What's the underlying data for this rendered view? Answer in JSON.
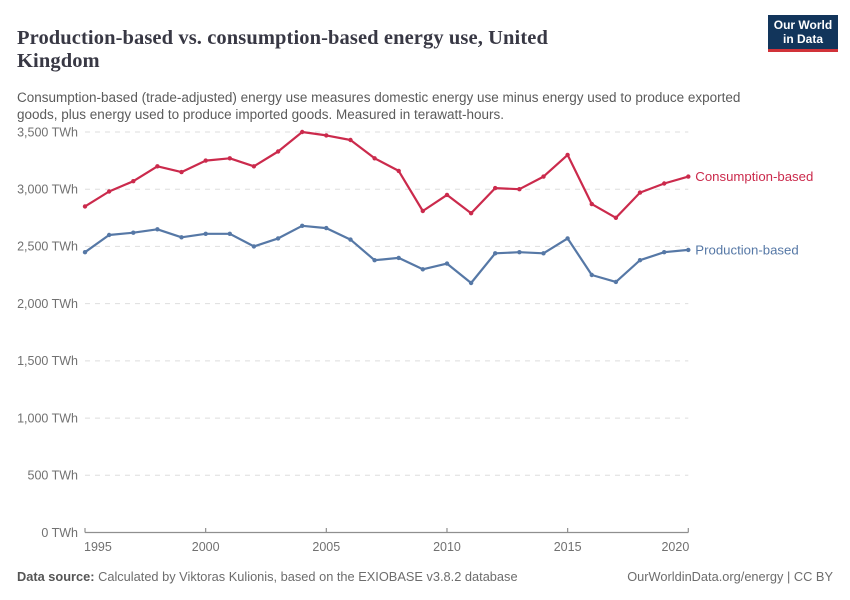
{
  "header": {
    "title_lines": {
      "0": "Production-based vs. consumption-based energy use, United",
      "1": "Kingdom"
    },
    "subtitle_lines": {
      "0": "Consumption-based (trade-adjusted) energy use measures domestic energy use minus energy used to produce exported",
      "1": "goods, plus energy used to produce imported goods. Measured in terawatt-hours."
    },
    "logo": {
      "line1": "Our World",
      "line2": "in Data",
      "bg_color": "#12355b",
      "bar_color": "#d13239"
    }
  },
  "chart_data": {
    "type": "line",
    "title": "Production-based vs. consumption-based energy use, United Kingdom",
    "unit": "TWh",
    "x": [
      1995,
      1996,
      1997,
      1998,
      1999,
      2000,
      2001,
      2002,
      2003,
      2004,
      2005,
      2006,
      2007,
      2008,
      2009,
      2010,
      2011,
      2012,
      2013,
      2014,
      2015,
      2016,
      2017,
      2018,
      2019,
      2020
    ],
    "series": [
      {
        "name": "Consumption-based",
        "color": "#cb2a4c",
        "values": [
          2850,
          2980,
          3070,
          3200,
          3150,
          3250,
          3270,
          3200,
          3330,
          3500,
          3470,
          3430,
          3270,
          3160,
          2810,
          2950,
          2790,
          3010,
          3000,
          3110,
          3300,
          2870,
          2750,
          2970,
          3050,
          3110
        ]
      },
      {
        "name": "Production-based",
        "color": "#5678a6",
        "values": [
          2450,
          2600,
          2620,
          2650,
          2580,
          2610,
          2610,
          2500,
          2570,
          2680,
          2660,
          2560,
          2380,
          2400,
          2300,
          2350,
          2180,
          2440,
          2450,
          2440,
          2570,
          2250,
          2190,
          2380,
          2450,
          2470
        ]
      }
    ],
    "ylim": [
      0,
      3500
    ],
    "ytick_step": 500,
    "ytick_labels": [
      "0 TWh",
      "500 TWh",
      "1,000 TWh",
      "1,500 TWh",
      "2,000 TWh",
      "2,500 TWh",
      "3,000 TWh",
      "3,500 TWh"
    ],
    "xticks": [
      1995,
      2000,
      2005,
      2010,
      2015,
      2020
    ],
    "grid": "horizontal-dashed",
    "legend_position": "end-of-line",
    "axis_color": "#8f8f8f",
    "gridline_color": "#dedede",
    "tick_label_color": "#717171"
  },
  "footer": {
    "data_source_label": "Data source:",
    "data_source_text": " Calculated by Viktoras Kulionis, based on the EXIOBASE v3.8.2 database",
    "credit": "OurWorldinData.org/energy | CC BY"
  }
}
